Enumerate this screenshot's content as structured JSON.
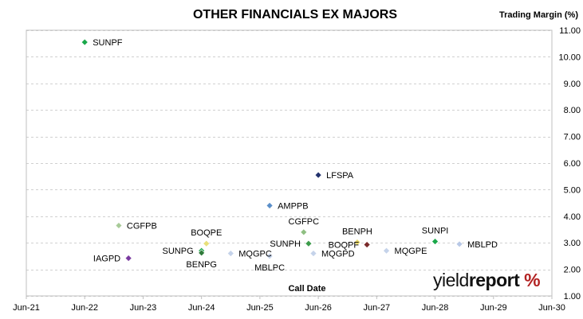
{
  "chart_data": {
    "type": "scatter",
    "title": "OTHER FINANCIALS EX MAJORS",
    "xlabel": "Call Date",
    "ylabel": "Trading Margin (%)",
    "x_ticks": [
      "Jun-21",
      "Jun-22",
      "Jun-23",
      "Jun-24",
      "Jun-25",
      "Jun-26",
      "Jun-27",
      "Jun-28",
      "Jun-29",
      "Jun-30"
    ],
    "y_ticks": [
      "1.00",
      "2.00",
      "3.00",
      "4.00",
      "5.00",
      "6.00",
      "7.00",
      "8.00",
      "9.00",
      "10.00",
      "11.00"
    ],
    "xlim": [
      "2021-06",
      "2030-06"
    ],
    "ylim": [
      1,
      11
    ],
    "grid": "horizontal",
    "legend": "none",
    "points": [
      {
        "label": "SUNPF",
        "x": "2022-06",
        "y": 10.55,
        "color": "#1aa84a",
        "label_pos": "right"
      },
      {
        "label": "LFSPA",
        "x": "2026-06",
        "y": 5.55,
        "color": "#23336e",
        "label_pos": "right"
      },
      {
        "label": "AMPPB",
        "x": "2025-08",
        "y": 4.4,
        "color": "#5b8fc9",
        "label_pos": "right"
      },
      {
        "label": "CGFPB",
        "x": "2023-01",
        "y": 3.65,
        "color": "#a8cb98",
        "label_pos": "right"
      },
      {
        "label": "CGFPC",
        "x": "2026-03",
        "y": 3.4,
        "color": "#8fbf82",
        "label_pos": "above"
      },
      {
        "label": "BOQPE",
        "x": "2024-07",
        "y": 2.97,
        "color": "#e8e07a",
        "label_pos": "above"
      },
      {
        "label": "SUNPH",
        "x": "2026-04",
        "y": 2.97,
        "color": "#3c9b4a",
        "label_pos": "left"
      },
      {
        "label": "BENPH",
        "x": "2027-02",
        "y": 3.02,
        "color": "#e8d86a",
        "label_pos": "above"
      },
      {
        "label": "BOQPF",
        "x": "2027-04",
        "y": 2.93,
        "color": "#7a2a2a",
        "label_pos": "left"
      },
      {
        "label": "SUNPI",
        "x": "2028-06",
        "y": 3.05,
        "color": "#1aa84a",
        "label_pos": "above"
      },
      {
        "label": "MBLPD",
        "x": "2028-11",
        "y": 2.95,
        "color": "#b8c8e6",
        "label_pos": "right"
      },
      {
        "label": "SUNPG",
        "x": "2024-06",
        "y": 2.7,
        "color": "#1aa84a",
        "label_pos": "left"
      },
      {
        "label": "BENPG",
        "x": "2024-06",
        "y": 2.62,
        "color": "#2f7a3a",
        "label_pos": "below"
      },
      {
        "label": "IAGPD",
        "x": "2023-03",
        "y": 2.42,
        "color": "#7a3aa0",
        "label_pos": "left"
      },
      {
        "label": "MQGPC",
        "x": "2024-12",
        "y": 2.6,
        "color": "#c5d3ea",
        "label_pos": "right"
      },
      {
        "label": "MBLPC",
        "x": "2025-08",
        "y": 2.5,
        "color": "#c5d3ea",
        "label_pos": "below"
      },
      {
        "label": "MQGPD",
        "x": "2026-05",
        "y": 2.6,
        "color": "#c5d3ea",
        "label_pos": "right"
      },
      {
        "label": "MQGPE",
        "x": "2027-08",
        "y": 2.7,
        "color": "#c5d3ea",
        "label_pos": "right"
      }
    ]
  },
  "branding": {
    "logo_part1": "yield",
    "logo_part2": "report",
    "logo_part3": " %"
  }
}
